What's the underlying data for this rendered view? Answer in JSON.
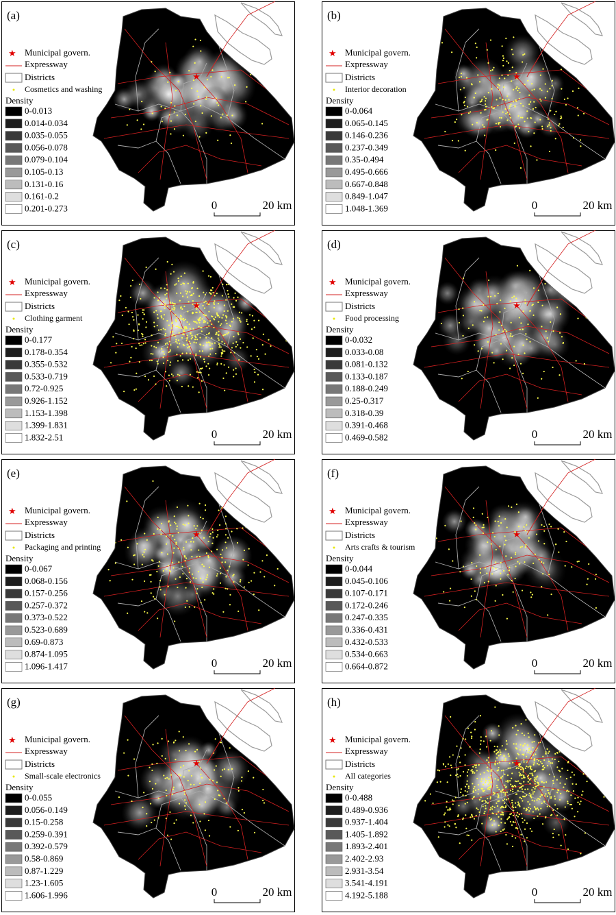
{
  "class_colors": [
    "#000000",
    "#1e1e1e",
    "#3a3a3a",
    "#595959",
    "#787878",
    "#999999",
    "#bcbcbc",
    "#dedede",
    "#ffffff"
  ],
  "panels": [
    {
      "label": "(a)",
      "star": "Municipal govern.",
      "expressway": "Expressway",
      "districts": "Districts",
      "points": "Cosmetics and washing",
      "density_title": "Density",
      "classes": [
        "0-0.013",
        "0.014-0.034",
        "0.035-0.055",
        "0.056-0.078",
        "0.079-0.104",
        "0.105-0.13",
        "0.131-0.16",
        "0.161-0.2",
        "0.201-0.273"
      ],
      "scale_zero": "0",
      "scale_distance": "20 km"
    },
    {
      "label": "(b)",
      "star": "Municipal govern.",
      "expressway": "Expressway",
      "districts": "Districts",
      "points": "Interior decoration",
      "density_title": "Density",
      "classes": [
        "0-0.064",
        "0.065-0.145",
        "0.146-0.236",
        "0.237-0.349",
        "0.35-0.494",
        "0.495-0.666",
        "0.667-0.848",
        "0.849-1.047",
        "1.048-1.369"
      ],
      "scale_zero": "0",
      "scale_distance": "20 km"
    },
    {
      "label": "(c)",
      "star": "Municipal govern.",
      "expressway": "Expressway",
      "districts": "Districts",
      "points": "Clothing garment",
      "density_title": "Density",
      "classes": [
        "0-0.177",
        "0.178-0.354",
        "0.355-0.532",
        "0.533-0.719",
        "0.72-0.925",
        "0.926-1.152",
        "1.153-1.398",
        "1.399-1.831",
        "1.832-2.51"
      ],
      "scale_zero": "0",
      "scale_distance": "20 km"
    },
    {
      "label": "(d)",
      "star": "Municipal govern.",
      "expressway": "Expressway",
      "districts": "Districts",
      "points": "Food processing",
      "density_title": "Density",
      "classes": [
        "0-0.032",
        "0.033-0.08",
        "0.081-0.132",
        "0.133-0.187",
        "0.188-0.249",
        "0.25-0.317",
        "0.318-0.39",
        "0.391-0.468",
        "0.469-0.582"
      ],
      "scale_zero": "0",
      "scale_distance": "20 km"
    },
    {
      "label": "(e)",
      "star": "Municipal govern.",
      "expressway": "Expressway",
      "districts": "Districts",
      "points": "Packaging and printing",
      "density_title": "Density",
      "classes": [
        "0-0.067",
        "0.068-0.156",
        "0.157-0.256",
        "0.257-0.372",
        "0.373-0.522",
        "0.523-0.689",
        "0.69-0.873",
        "0.874-1.095",
        "1.096-1.417"
      ],
      "scale_zero": "0",
      "scale_distance": "20 km"
    },
    {
      "label": "(f)",
      "star": "Municipal govern.",
      "expressway": "Expressway",
      "districts": "Districts",
      "points": "Arts crafts & tourism",
      "density_title": "Density",
      "classes": [
        "0-0.044",
        "0.045-0.106",
        "0.107-0.171",
        "0.172-0.246",
        "0.247-0.335",
        "0.336-0.431",
        "0.432-0.533",
        "0.534-0.663",
        "0.664-0.872"
      ],
      "scale_zero": "0",
      "scale_distance": "20 km"
    },
    {
      "label": "(g)",
      "star": "Municipal govern.",
      "expressway": "Expressway",
      "districts": "Districts",
      "points": "Small-scale electronics",
      "density_title": "Density",
      "classes": [
        "0-0.055",
        "0.056-0.149",
        "0.15-0.258",
        "0.259-0.391",
        "0.392-0.579",
        "0.58-0.869",
        "0.87-1.229",
        "1.23-1.605",
        "1.606-1.996"
      ],
      "scale_zero": "0",
      "scale_distance": "20 km"
    },
    {
      "label": "(h)",
      "star": "Municipal govern.",
      "expressway": "Expressway",
      "districts": "Districts",
      "points": "All categories",
      "density_title": "Density",
      "classes": [
        "0-0.488",
        "0.489-0.936",
        "0.937-1.404",
        "1.405-1.892",
        "1.893-2.401",
        "2.402-2.93",
        "2.931-3.54",
        "3.541-4.191",
        "4.192-5.188"
      ],
      "scale_zero": "0",
      "scale_distance": "20 km"
    }
  ]
}
